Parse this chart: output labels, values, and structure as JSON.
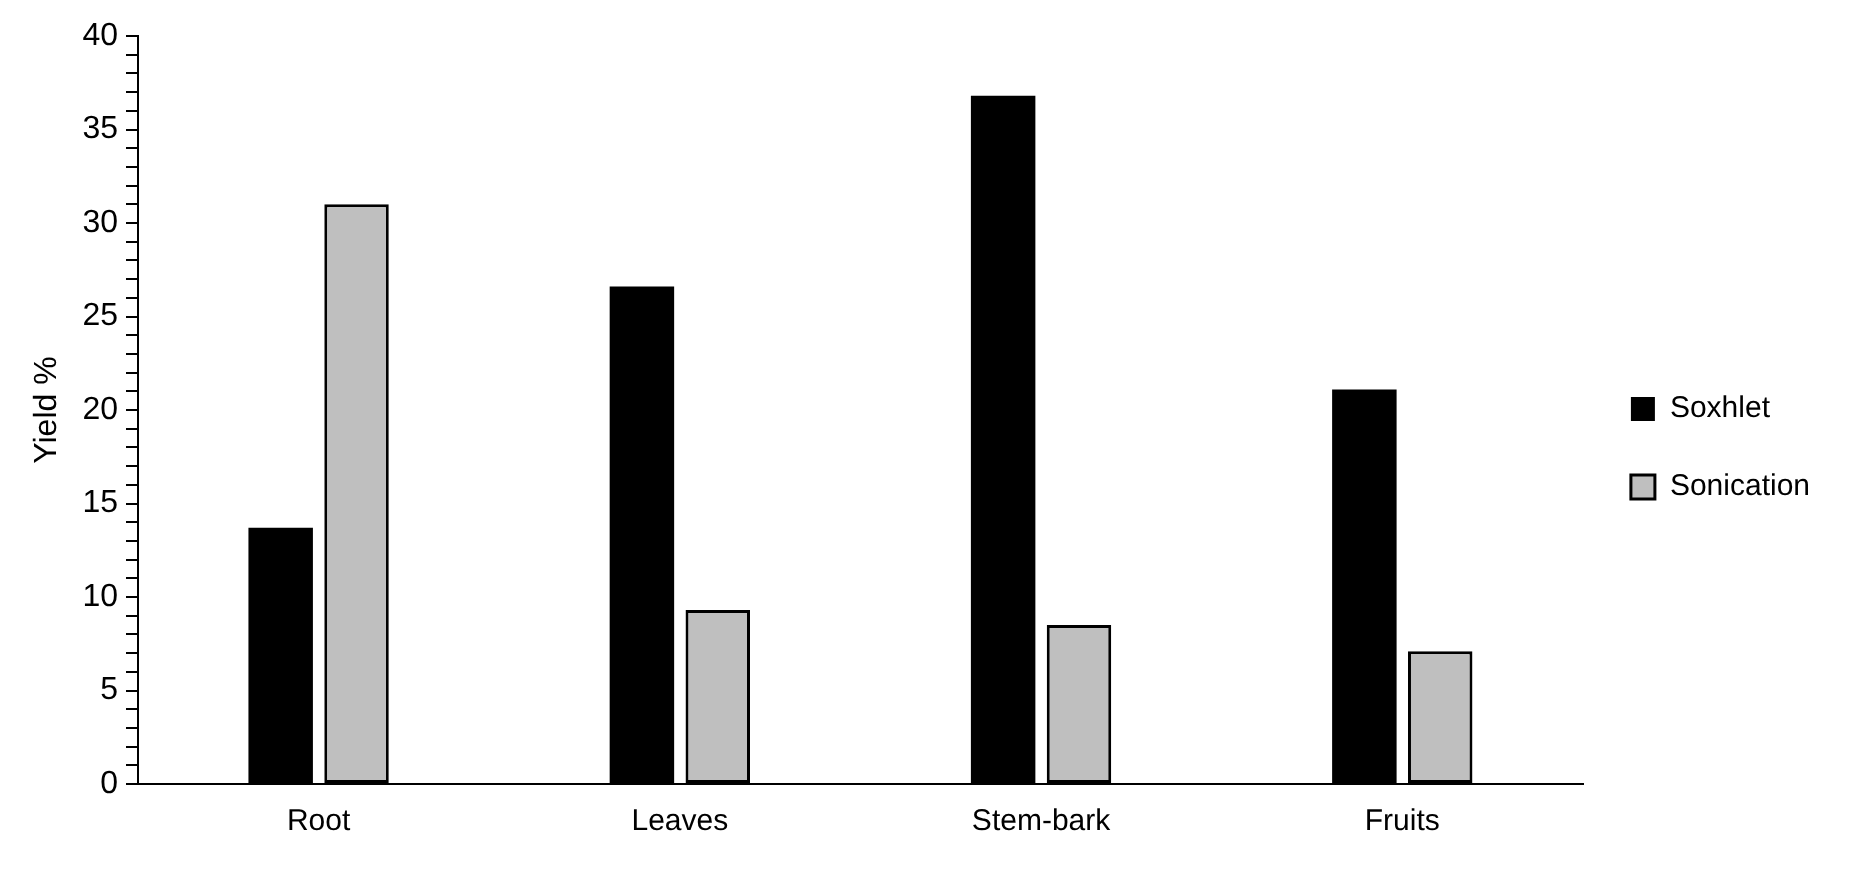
{
  "chart_data": {
    "type": "bar",
    "ylabel": "Yield %",
    "categories": [
      "Root",
      "Leaves",
      "Stem-bark",
      "Fruits"
    ],
    "series": [
      {
        "name": "Soxhlet",
        "color": "#000000",
        "values": [
          13.7,
          26.6,
          36.8,
          21.1
        ]
      },
      {
        "name": "Sonication",
        "color": "#bfbfbf",
        "values": [
          31.0,
          9.3,
          8.5,
          7.1
        ]
      }
    ],
    "ylim": [
      0,
      40
    ],
    "yticks": [
      0,
      {
        "value": 1,
        "label": null
      },
      {
        "value": 2,
        "label": null
      },
      {
        "value": 3,
        "label": null
      },
      {
        "value": 4,
        "label": null
      },
      5,
      {
        "value": 6,
        "label": null
      },
      {
        "value": 7,
        "label": null
      },
      {
        "value": 8,
        "label": null
      },
      {
        "value": 9,
        "label": null
      },
      10,
      {
        "value": 11,
        "label": null
      },
      {
        "value": 12,
        "label": null
      },
      {
        "value": 13,
        "label": null
      },
      {
        "value": 14,
        "label": null
      },
      15,
      {
        "value": 16,
        "label": null
      },
      {
        "value": 17,
        "label": null
      },
      {
        "value": 18,
        "label": null
      },
      {
        "value": 19,
        "label": null
      },
      20,
      {
        "value": 21,
        "label": null
      },
      {
        "value": 22,
        "label": null
      },
      {
        "value": 23,
        "label": null
      },
      {
        "value": 24,
        "label": null
      },
      25,
      {
        "value": 26,
        "label": null
      },
      {
        "value": 27,
        "label": null
      },
      {
        "value": 28,
        "label": null
      },
      {
        "value": 29,
        "label": null
      },
      30,
      {
        "value": 31,
        "label": null
      },
      {
        "value": 32,
        "label": null
      },
      {
        "value": 33,
        "label": null
      },
      {
        "value": 34,
        "label": null
      },
      35,
      {
        "value": 36,
        "label": null
      },
      {
        "value": 37,
        "label": null
      },
      {
        "value": 38,
        "label": null
      },
      {
        "value": 39,
        "label": null
      },
      40
    ],
    "grid": false,
    "legend": "right"
  }
}
